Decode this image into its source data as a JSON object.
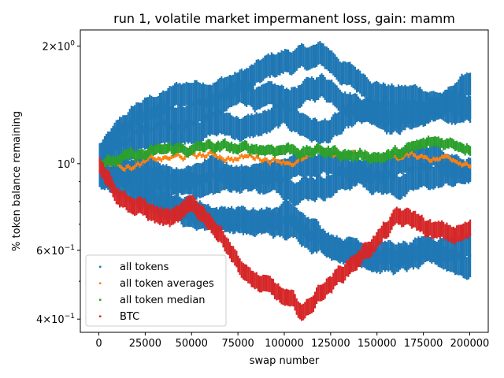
{
  "chart_data": {
    "type": "scatter",
    "title": "run 1, volatile market impermanent loss, gain: mamm",
    "xlabel": "swap number",
    "ylabel": "% token balance remaining",
    "xlim": [
      -10000,
      210000
    ],
    "ylim": [
      0.37,
      2.2
    ],
    "yscale": "log",
    "x_ticks": [
      0,
      25000,
      50000,
      75000,
      100000,
      125000,
      150000,
      175000,
      200000
    ],
    "x_tick_labels": [
      "0",
      "25000",
      "50000",
      "75000",
      "100000",
      "125000",
      "150000",
      "175000",
      "200000"
    ],
    "y_ticks": [
      0.4,
      0.6,
      1.0,
      2.0
    ],
    "y_tick_labels": [
      {
        "base": "4×10",
        "exp": "−1"
      },
      {
        "base": "6×10",
        "exp": "−1"
      },
      {
        "base": "10",
        "exp": "0"
      },
      {
        "base": "2×10",
        "exp": "0"
      }
    ],
    "grid": false,
    "legend_position": "lower-left",
    "series": [
      {
        "name": "all tokens",
        "color": "#1f77b4",
        "tracks": [
          {
            "x": [
              0,
              20000,
              40000,
              60000,
              80000,
              100000,
              120000,
              140000,
              160000,
              180000,
              200000
            ],
            "y": [
              1.05,
              1.3,
              1.45,
              1.55,
              1.65,
              1.8,
              1.85,
              1.6,
              1.5,
              1.45,
              1.4
            ]
          },
          {
            "x": [
              0,
              20000,
              40000,
              60000,
              80000,
              100000,
              120000,
              140000,
              160000,
              180000,
              200000
            ],
            "y": [
              1.03,
              1.2,
              1.3,
              1.4,
              1.5,
              1.4,
              1.55,
              1.45,
              1.35,
              1.4,
              1.55
            ]
          },
          {
            "x": [
              0,
              20000,
              40000,
              60000,
              80000,
              100000,
              120000,
              140000,
              160000,
              180000,
              200000
            ],
            "y": [
              1.02,
              1.15,
              1.2,
              1.3,
              1.25,
              1.3,
              1.2,
              1.3,
              1.25,
              1.35,
              1.3
            ]
          },
          {
            "x": [
              0,
              20000,
              40000,
              60000,
              80000,
              100000,
              120000,
              140000,
              160000,
              180000,
              200000
            ],
            "y": [
              0.98,
              0.95,
              0.92,
              1.0,
              0.95,
              0.9,
              0.92,
              0.98,
              1.0,
              1.05,
              1.0
            ]
          },
          {
            "x": [
              0,
              20000,
              40000,
              60000,
              80000,
              100000,
              120000,
              140000,
              160000,
              180000,
              200000
            ],
            "y": [
              0.96,
              0.9,
              0.85,
              0.88,
              0.92,
              0.95,
              1.0,
              0.95,
              0.9,
              0.92,
              0.95
            ]
          },
          {
            "x": [
              0,
              20000,
              40000,
              60000,
              80000,
              100000,
              120000,
              140000,
              160000,
              180000,
              200000
            ],
            "y": [
              0.95,
              0.88,
              0.8,
              0.75,
              0.72,
              0.68,
              0.65,
              0.62,
              0.58,
              0.57,
              0.55
            ]
          },
          {
            "x": [
              0,
              20000,
              40000,
              60000,
              80000,
              100000,
              120000,
              140000,
              160000,
              180000,
              200000
            ],
            "y": [
              0.94,
              0.85,
              0.75,
              0.68,
              0.7,
              0.72,
              0.62,
              0.58,
              0.6,
              0.62,
              0.64
            ]
          }
        ]
      },
      {
        "name": "all token averages",
        "color": "#ff7f0e",
        "x": [
          0,
          20000,
          40000,
          60000,
          80000,
          100000,
          120000,
          140000,
          160000,
          180000,
          200000
        ],
        "y": [
          1.0,
          1.01,
          1.02,
          1.03,
          1.04,
          1.05,
          1.05,
          1.04,
          1.04,
          1.05,
          1.05
        ]
      },
      {
        "name": "all token median",
        "color": "#2ca02c",
        "x": [
          0,
          20000,
          40000,
          60000,
          80000,
          100000,
          120000,
          140000,
          160000,
          180000,
          200000
        ],
        "y": [
          1.0,
          1.02,
          1.05,
          1.08,
          1.05,
          1.1,
          1.08,
          1.06,
          1.07,
          1.1,
          1.12
        ]
      },
      {
        "name": "BTC",
        "color": "#d62728",
        "x": [
          0,
          10000,
          20000,
          30000,
          40000,
          50000,
          60000,
          70000,
          80000,
          90000,
          100000,
          110000,
          120000,
          130000,
          140000,
          150000,
          160000,
          170000,
          180000,
          190000,
          200000
        ],
        "y": [
          1.0,
          0.85,
          0.8,
          0.75,
          0.72,
          0.75,
          0.7,
          0.62,
          0.52,
          0.48,
          0.44,
          0.4,
          0.47,
          0.52,
          0.58,
          0.65,
          0.72,
          0.7,
          0.66,
          0.64,
          0.66
        ]
      }
    ]
  }
}
